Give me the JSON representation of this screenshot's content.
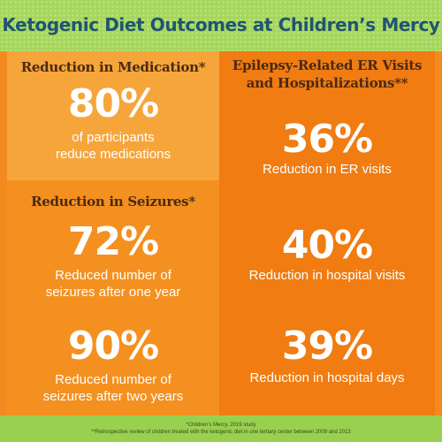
{
  "header": {
    "title": "Ketogenic Diet Outcomes at Children’s Mercy"
  },
  "medication": {
    "heading": "Reduction in Medication*",
    "stat": "80%",
    "desc_line1": "of participants",
    "desc_line2": "reduce medications"
  },
  "seizures": {
    "heading": "Reduction in Seizures*",
    "items": [
      {
        "stat": "72%",
        "desc_line1": "Reduced number of",
        "desc_line2": "seizures after one year"
      },
      {
        "stat": "90%",
        "desc_line1": "Reduced number of",
        "desc_line2": "seizures after two years"
      }
    ]
  },
  "epilepsy": {
    "heading_line1": "Epilepsy-Related ER Visits",
    "heading_line2": "and Hospitalizations**",
    "items": [
      {
        "stat": "36%",
        "desc": "Reduction in ER visits"
      },
      {
        "stat": "40%",
        "desc": "Reduction in hospital visits"
      },
      {
        "stat": "39%",
        "desc": "Reduction in hospital days"
      }
    ]
  },
  "footer": {
    "note1": "*Children’s Mercy, 2019 study",
    "note2": "**Retrospective review of children treated with the ketogenic diet in one tertiary center between 2009 and 2013"
  },
  "colors": {
    "header_green": "#a6d65d",
    "title_blue": "#1f5571",
    "medication_panel": "#f6a53b",
    "seizures_panel": "#f4901f",
    "epilepsy_panel": "#f07c12",
    "heading_brown": "#4a2a12",
    "footer_green": "#9ad04f"
  }
}
